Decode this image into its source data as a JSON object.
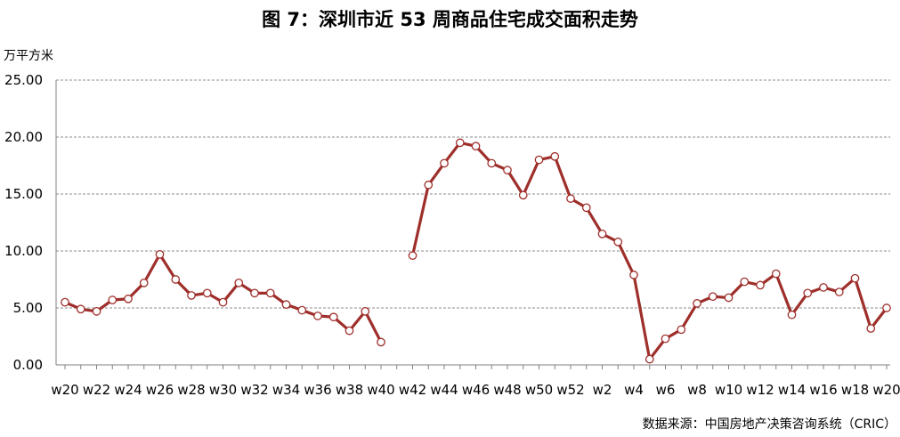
{
  "title": "图 7：深圳市近 53 周商品住宅成交面积走势",
  "unit": "万平方米",
  "source": "数据来源：中国房地产决策咨询系统（CRIC）",
  "colors": {
    "line": "#9E2F2B",
    "marker_fill": "#ffffff",
    "grid": "#8c8c8c",
    "axis": "#808080"
  },
  "chart_data": {
    "type": "line",
    "title": "图 7：深圳市近 53 周商品住宅成交面积走势",
    "xlabel": "",
    "ylabel": "万平方米",
    "ylim": [
      0,
      25
    ],
    "yticks": [
      "0.00",
      "5.00",
      "10.00",
      "15.00",
      "20.00",
      "25.00"
    ],
    "grid": true,
    "legend": "none",
    "categories": [
      "w20",
      "w21",
      "w22",
      "w23",
      "w24",
      "w25",
      "w26",
      "w27",
      "w28",
      "w29",
      "w30",
      "w31",
      "w32",
      "w33",
      "w34",
      "w35",
      "w36",
      "w37",
      "w38",
      "w39",
      "w40",
      "w41",
      "w42",
      "w43",
      "w44",
      "w45",
      "w46",
      "w47",
      "w48",
      "w49",
      "w50",
      "w51",
      "w52",
      "w1",
      "w2",
      "w3",
      "w4",
      "w5",
      "w6",
      "w7",
      "w8",
      "w9",
      "w10",
      "w11",
      "w12",
      "w13",
      "w14",
      "w15",
      "w16",
      "w17",
      "w18",
      "w19",
      "w20"
    ],
    "xtick_labels": [
      "w20",
      "w22",
      "w24",
      "w26",
      "w28",
      "w30",
      "w32",
      "w34",
      "w36",
      "w38",
      "w40",
      "w42",
      "w44",
      "w46",
      "w48",
      "w50",
      "w52",
      "w2",
      "w4",
      "w6",
      "w8",
      "w10",
      "w12",
      "w14",
      "w16",
      "w18",
      "w20"
    ],
    "series": [
      {
        "values": [
          5.5,
          4.9,
          4.7,
          5.7,
          5.8,
          7.2,
          9.7,
          7.5,
          6.1,
          6.3,
          5.5,
          7.2,
          6.3,
          6.3,
          5.3,
          4.8,
          4.3,
          4.2,
          3.0,
          4.7,
          2.0,
          null,
          9.6,
          15.8,
          17.7,
          19.5,
          19.2,
          17.7,
          17.1,
          14.9,
          18.0,
          18.3,
          14.6,
          13.8,
          11.5,
          10.8,
          7.9,
          0.5,
          2.3,
          3.1,
          5.4,
          6.0,
          5.9,
          7.3,
          7.0,
          8.0,
          4.4,
          6.3,
          6.8,
          6.4,
          7.6,
          3.2,
          5.0
        ]
      }
    ]
  }
}
